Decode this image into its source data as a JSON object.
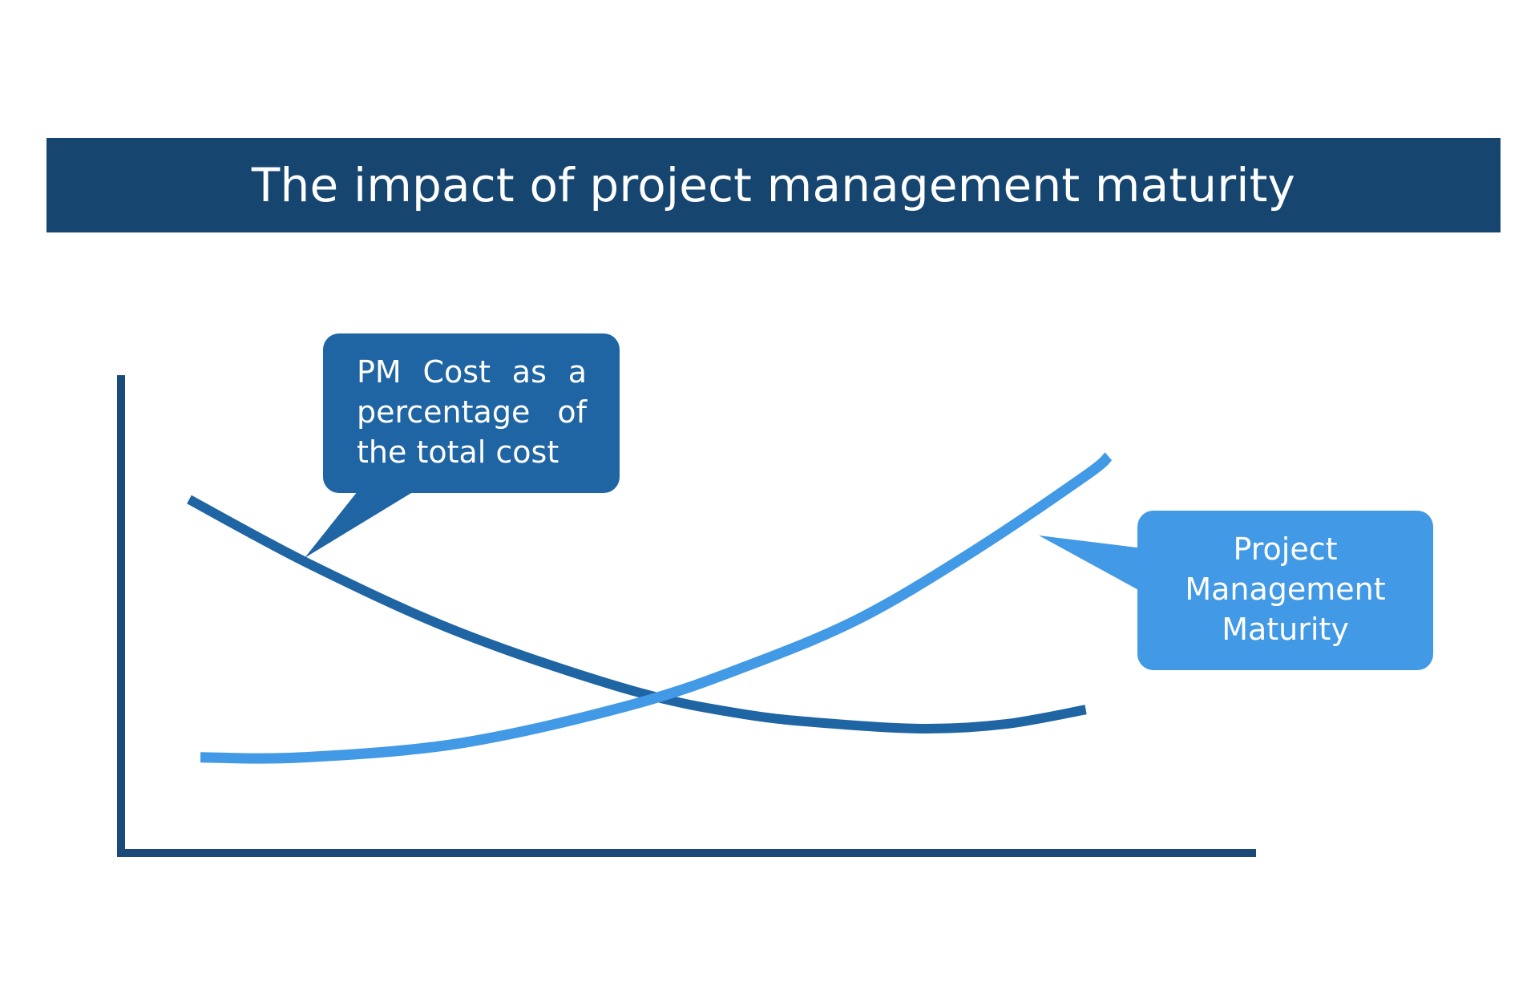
{
  "title": "The impact of project management maturity",
  "colors": {
    "banner": "#16456F",
    "axis": "#1A4A7A",
    "cost_series": "#1F64A3",
    "maturity_series": "#4299E5"
  },
  "chart_data": {
    "type": "line",
    "title": "The impact of project management maturity",
    "xlabel": "",
    "ylabel": "",
    "axis_ticks": false,
    "grid": false,
    "legend": "callouts",
    "xlim": [
      0,
      100
    ],
    "ylim": [
      0,
      100
    ],
    "series": [
      {
        "name": "PM Cost as a percentage of the total cost",
        "color": "#1F64A3",
        "x": [
          6,
          17,
          30,
          45,
          55,
          63,
          71,
          78,
          85
        ],
        "y": [
          74,
          60,
          46,
          34,
          29,
          27,
          26,
          27,
          30
        ]
      },
      {
        "name": "Project Management Maturity",
        "color": "#4299E5",
        "x": [
          7,
          16,
          30,
          45,
          55,
          65,
          75,
          85,
          87
        ],
        "y": [
          20,
          20,
          23,
          31,
          39,
          49,
          63,
          79,
          83
        ]
      }
    ],
    "callouts": {
      "cost": "PM Cost as a percentage of the total cost",
      "maturity": "Project Management Maturity"
    }
  }
}
